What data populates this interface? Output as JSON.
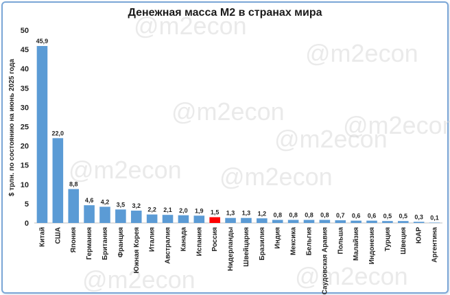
{
  "chart_data": {
    "type": "bar",
    "title": "Денежная масса М2 в странах мира",
    "ylabel": "$ трлн. по состоянию на июнь 2025 года",
    "xlabel": "",
    "ylim": [
      0,
      50
    ],
    "yticks": [
      0,
      5,
      10,
      15,
      20,
      25,
      30,
      35,
      40,
      45,
      50
    ],
    "grid": false,
    "categories": [
      "Китай",
      "США",
      "Япония",
      "Германия",
      "Британия",
      "Франция",
      "Южная Корея",
      "Италия",
      "Австралия",
      "Канада",
      "Испания",
      "Россия",
      "Нидерланды",
      "Швейцария",
      "Бразилия",
      "Индия",
      "Мексика",
      "Бельгия",
      "Саудовская Аравия",
      "Польша",
      "Малайзия",
      "Индонезия",
      "Турция",
      "Швеция",
      "ЮАР",
      "Аргентина"
    ],
    "values": [
      45.9,
      22.0,
      8.8,
      4.6,
      4.2,
      3.5,
      3.2,
      2.2,
      2.1,
      2.0,
      1.9,
      1.5,
      1.3,
      1.3,
      1.2,
      0.8,
      0.8,
      0.8,
      0.8,
      0.7,
      0.6,
      0.6,
      0.5,
      0.5,
      0.3,
      0.1
    ],
    "value_labels": [
      "45,9",
      "22,0",
      "8,8",
      "4,6",
      "4,2",
      "3,5",
      "3,2",
      "2,2",
      "2,1",
      "2,0",
      "1,9",
      "1,5",
      "1,3",
      "1,3",
      "1,2",
      "0,8",
      "0,8",
      "0,8",
      "0,8",
      "0,7",
      "0,6",
      "0,6",
      "0,5",
      "0,5",
      "0,3",
      "0,1"
    ],
    "colors": {
      "bar": "#5b9bd5",
      "highlight": "#ff0000",
      "highlight_category": "Россия"
    }
  },
  "watermark": "@m2econ"
}
